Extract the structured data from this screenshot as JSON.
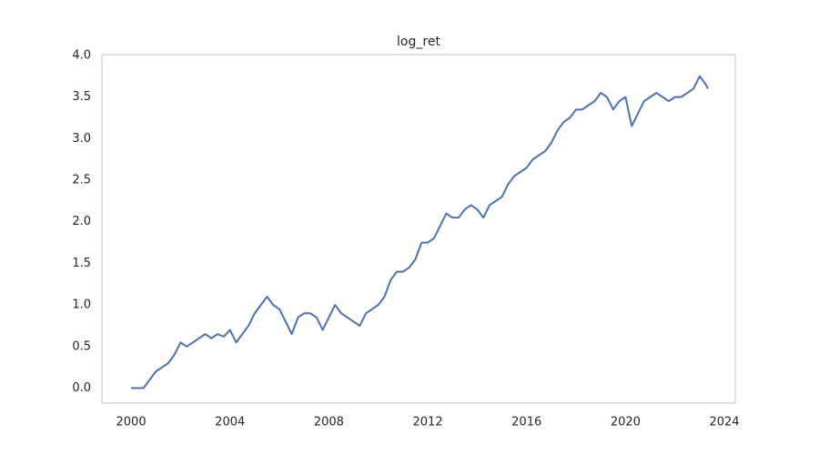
{
  "chart_data": {
    "type": "line",
    "title": "log_ret",
    "x": [
      2000,
      2000.25,
      2000.5,
      2000.75,
      2001,
      2001.25,
      2001.5,
      2001.75,
      2002,
      2002.25,
      2002.5,
      2002.75,
      2003,
      2003.25,
      2003.5,
      2003.75,
      2004,
      2004.25,
      2004.5,
      2004.75,
      2005,
      2005.25,
      2005.5,
      2005.75,
      2006,
      2006.25,
      2006.5,
      2006.75,
      2007,
      2007.25,
      2007.5,
      2007.75,
      2008,
      2008.25,
      2008.5,
      2008.75,
      2009,
      2009.25,
      2009.5,
      2009.75,
      2010,
      2010.25,
      2010.5,
      2010.75,
      2011,
      2011.25,
      2011.5,
      2011.75,
      2012,
      2012.25,
      2012.5,
      2012.75,
      2013,
      2013.25,
      2013.5,
      2013.75,
      2014,
      2014.25,
      2014.5,
      2014.75,
      2015,
      2015.25,
      2015.5,
      2015.75,
      2016,
      2016.25,
      2016.5,
      2016.75,
      2017,
      2017.25,
      2017.5,
      2017.75,
      2018,
      2018.25,
      2018.5,
      2018.75,
      2019,
      2019.25,
      2019.5,
      2019.75,
      2020,
      2020.25,
      2020.5,
      2020.75,
      2021,
      2021.25,
      2021.5,
      2021.75,
      2022,
      2022.25,
      2022.5,
      2022.75,
      2023,
      2023.25,
      2023.33
    ],
    "series": [
      {
        "color": "#4c72b0",
        "values": [
          0,
          0,
          0,
          0.1,
          0.2,
          0.25,
          0.3,
          0.4,
          0.55,
          0.5,
          0.55,
          0.6,
          0.65,
          0.6,
          0.65,
          0.62,
          0.7,
          0.55,
          0.65,
          0.75,
          0.9,
          1.0,
          1.1,
          1.0,
          0.95,
          0.8,
          0.65,
          0.85,
          0.9,
          0.9,
          0.85,
          0.7,
          0.85,
          1.0,
          0.9,
          0.85,
          0.8,
          0.75,
          0.9,
          0.95,
          1.0,
          1.1,
          1.3,
          1.4,
          1.4,
          1.45,
          1.55,
          1.75,
          1.75,
          1.8,
          1.95,
          2.1,
          2.05,
          2.05,
          2.15,
          2.2,
          2.15,
          2.05,
          2.2,
          2.25,
          2.3,
          2.45,
          2.55,
          2.6,
          2.65,
          2.75,
          2.8,
          2.85,
          2.95,
          3.1,
          3.2,
          3.25,
          3.35,
          3.35,
          3.4,
          3.45,
          3.55,
          3.5,
          3.35,
          3.45,
          3.5,
          3.15,
          3.3,
          3.45,
          3.5,
          3.55,
          3.5,
          3.45,
          3.5,
          3.5,
          3.55,
          3.6,
          3.75,
          3.65,
          3.6
        ]
      }
    ],
    "xlim": [
      1998.82,
      2024.44
    ],
    "xticks": [
      2000,
      2004,
      2008,
      2012,
      2016,
      2020,
      2024
    ],
    "ylim": [
      -0.18,
      4.01
    ],
    "yticks": [
      {
        "value": 0,
        "label": "0.0"
      },
      {
        "value": 0.5,
        "label": "0.5"
      },
      {
        "value": 1,
        "label": "1.0"
      },
      {
        "value": 1.5,
        "label": "1.5"
      },
      {
        "value": 2,
        "label": "2.0"
      },
      {
        "value": 2.5,
        "label": "2.5"
      },
      {
        "value": 3,
        "label": "3.0"
      },
      {
        "value": 3.5,
        "label": "3.5"
      },
      {
        "value": 4,
        "label": "4.0"
      }
    ],
    "grid": true
  }
}
